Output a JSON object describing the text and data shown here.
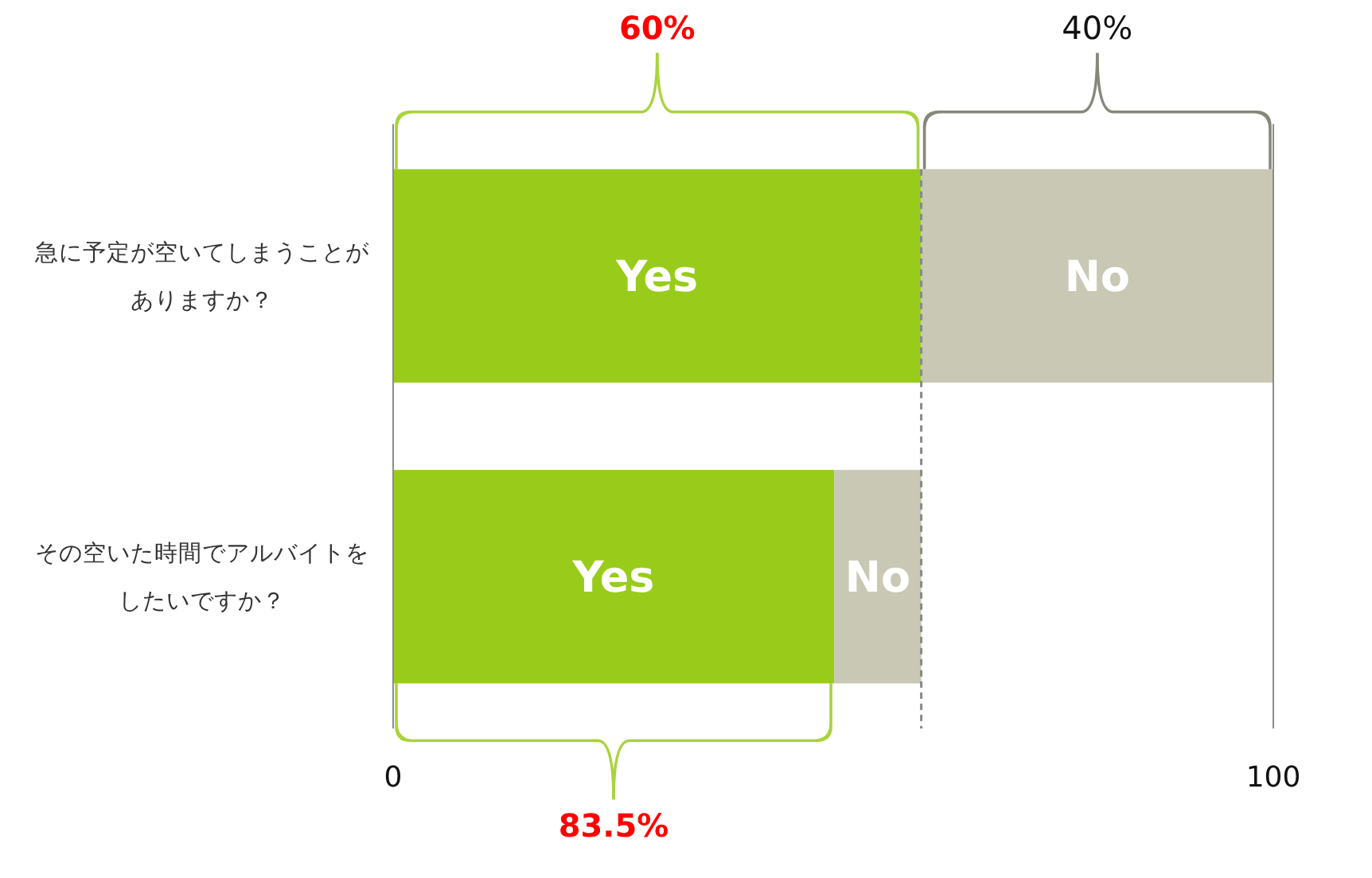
{
  "chart_data": {
    "type": "bar",
    "orientation": "horizontal",
    "stacked": true,
    "categories": [
      "急に予定が空いてしまうことがありますか？",
      "その空いた時間でアルバイトをしたいですか？"
    ],
    "series": [
      {
        "name": "Yes",
        "color": "#99cc1a",
        "values": [
          60,
          50.1
        ]
      },
      {
        "name": "No",
        "color": "#c8c8b4",
        "values": [
          40,
          9.9
        ]
      }
    ],
    "xlim": [
      0,
      100
    ],
    "xticks": [
      0,
      100
    ],
    "ref_lines": [
      {
        "axis": "x",
        "value": 60,
        "color": "#888888",
        "line_style": "dashed"
      }
    ],
    "annotations": [
      "60%",
      "40%",
      "83.5%"
    ]
  }
}
